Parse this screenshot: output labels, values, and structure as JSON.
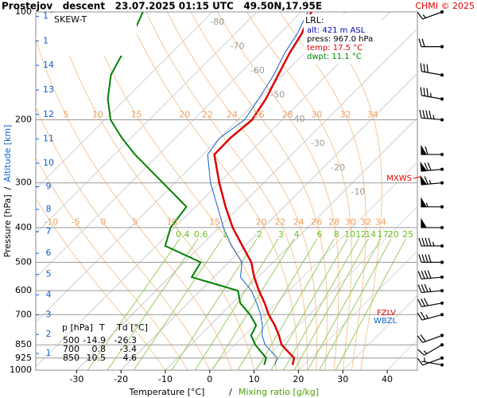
{
  "chart_data": {
    "type": "skewt",
    "title": "Prostejov   descent   23.07.2025 01:15 UTC   49.50N,17.95E",
    "credit": "CHMI © 2025",
    "xlabel": "Temperature [°C]",
    "xlabel_sep": "/",
    "xlabel2": "Mixing ratio [g/kg]",
    "ylabel": "Pressure [hPa]",
    "ylabel_sep": "/",
    "ylabel2": "Altitude [km]",
    "xlim": [
      -39.2,
      46.8
    ],
    "xticks": [
      -30,
      -20,
      -10,
      0,
      10,
      20,
      30,
      40
    ],
    "ylim": [
      1000,
      100
    ],
    "log_y": true,
    "yticks": [
      100,
      200,
      300,
      400,
      500,
      600,
      700,
      850,
      925,
      1000
    ],
    "grid": true,
    "altitude_ticks": [
      1,
      2,
      3,
      4,
      5,
      6,
      7,
      8,
      9,
      10,
      11,
      12,
      13,
      14,
      15,
      16
    ],
    "isotherm_labels": [
      -80,
      -70,
      -60,
      -50,
      -40,
      -30,
      -20,
      -10
    ],
    "moist_adiabats": [
      -10,
      -5,
      0,
      5,
      10,
      15,
      20,
      22,
      24,
      26,
      28,
      30,
      32,
      34
    ],
    "mixing_ratios": [
      0.4,
      0.6,
      1,
      2,
      3,
      4,
      6,
      8,
      10,
      12,
      14,
      17,
      20,
      25
    ],
    "legend_title": "SKEW-T",
    "pressure": [
      967,
      925,
      850,
      800,
      750,
      700,
      650,
      600,
      550,
      500,
      450,
      400,
      350,
      300,
      250,
      225,
      200,
      175,
      150,
      130,
      115,
      100
    ],
    "series": [
      {
        "name": "temperature",
        "color": "#e00000",
        "values": [
          17.5,
          16.3,
          10.5,
          7.8,
          4.6,
          0.8,
          -2.7,
          -6.8,
          -10.9,
          -14.9,
          -20.6,
          -26.9,
          -33.2,
          -40,
          -47.5,
          -47.6,
          -46.8,
          -48.4,
          -51,
          -53.4,
          -55,
          -57.7
        ]
      },
      {
        "name": "dew point",
        "color": "#008000",
        "values": [
          11.1,
          10,
          4.6,
          1.5,
          0.4,
          -3.4,
          -8.2,
          -11.5,
          -25,
          -26.3,
          -38,
          -40.9,
          -42,
          -52.7,
          -65.4,
          -72,
          -78.7,
          -84,
          -88.7,
          -91,
          -93,
          -95.7
        ]
      },
      {
        "name": "wet bulb temp.",
        "color": "#1060d0",
        "values": [
          13.5,
          12.5,
          6.8,
          4,
          1.8,
          -1,
          -4.5,
          -8.5,
          -14,
          -17,
          -23,
          -29,
          -35,
          -42,
          -49,
          -50,
          -48.5,
          -50,
          -52,
          -54.5,
          -56,
          -58.5
        ]
      }
    ],
    "winds": {
      "pressure": [
        967,
        925,
        850,
        800,
        700,
        650,
        600,
        550,
        500,
        450,
        400,
        350,
        300,
        275,
        250,
        200,
        175,
        150,
        125,
        100
      ],
      "direction": [
        280,
        250,
        240,
        250,
        255,
        260,
        265,
        265,
        270,
        270,
        270,
        270,
        265,
        265,
        270,
        275,
        280,
        280,
        270,
        250
      ],
      "speed": [
        5,
        10,
        15,
        20,
        25,
        30,
        35,
        40,
        40,
        45,
        50,
        55,
        65,
        70,
        60,
        45,
        35,
        30,
        20,
        15
      ]
    },
    "lrl": {
      "title": "LRL:",
      "alt": "alt: 421 m ASL",
      "press": "press: 967.0 hPa",
      "temp": "temp: 17.5 °C",
      "dwpt": "dwpt: 11.1 °C"
    },
    "annotations": {
      "mxws": "MXWS",
      "fzlv": "FZLV",
      "wbzl": "WBZL"
    },
    "table": {
      "header": [
        "p [hPa]",
        "T",
        "Td [°C]"
      ],
      "rows": [
        [
          500,
          -14.9,
          -26.3
        ],
        [
          700,
          0.8,
          -3.4
        ],
        [
          850,
          10.5,
          4.6
        ]
      ]
    }
  }
}
